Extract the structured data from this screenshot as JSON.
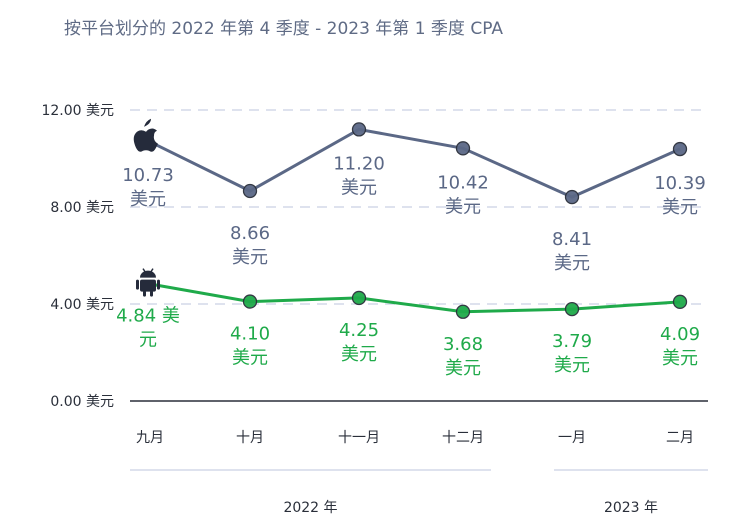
{
  "chart_data": {
    "type": "line",
    "title": "按平台划分的 2022 年第 4 季度 - 2023 年第 1 季度 CPA",
    "categories": [
      "九月",
      "十月",
      "十一月",
      "十二月",
      "一月",
      "二月"
    ],
    "groups": [
      {
        "label": "2022 年",
        "span": [
          0,
          3
        ]
      },
      {
        "label": "2023 年",
        "span": [
          4,
          5
        ]
      }
    ],
    "ylim": [
      0,
      12
    ],
    "yticks": [
      0,
      4,
      8,
      12
    ],
    "ytick_labels": [
      "0.00 美元",
      "4.00 美元",
      "8.00 美元",
      "12.00 美元"
    ],
    "grid": true,
    "series": [
      {
        "icon": "apple-icon",
        "color": "#5b6886",
        "values": [
          10.73,
          8.66,
          11.2,
          10.42,
          8.41,
          10.39
        ],
        "labels": [
          [
            "10.73",
            "美元"
          ],
          [
            "8.66",
            "美元"
          ],
          [
            "11.20",
            "美元"
          ],
          [
            "10.42",
            "美元"
          ],
          [
            "8.41",
            "美元"
          ],
          [
            "10.39",
            "美元"
          ]
        ]
      },
      {
        "icon": "android-icon",
        "color": "#1faa4a",
        "values": [
          4.84,
          4.1,
          4.25,
          3.68,
          3.79,
          4.09
        ],
        "labels": [
          [
            "4.84 美",
            "元"
          ],
          [
            "4.10",
            "美元"
          ],
          [
            "4.25",
            "美元"
          ],
          [
            "3.68",
            "美元"
          ],
          [
            "3.79",
            "美元"
          ],
          [
            "4.09",
            "美元"
          ]
        ]
      }
    ]
  }
}
